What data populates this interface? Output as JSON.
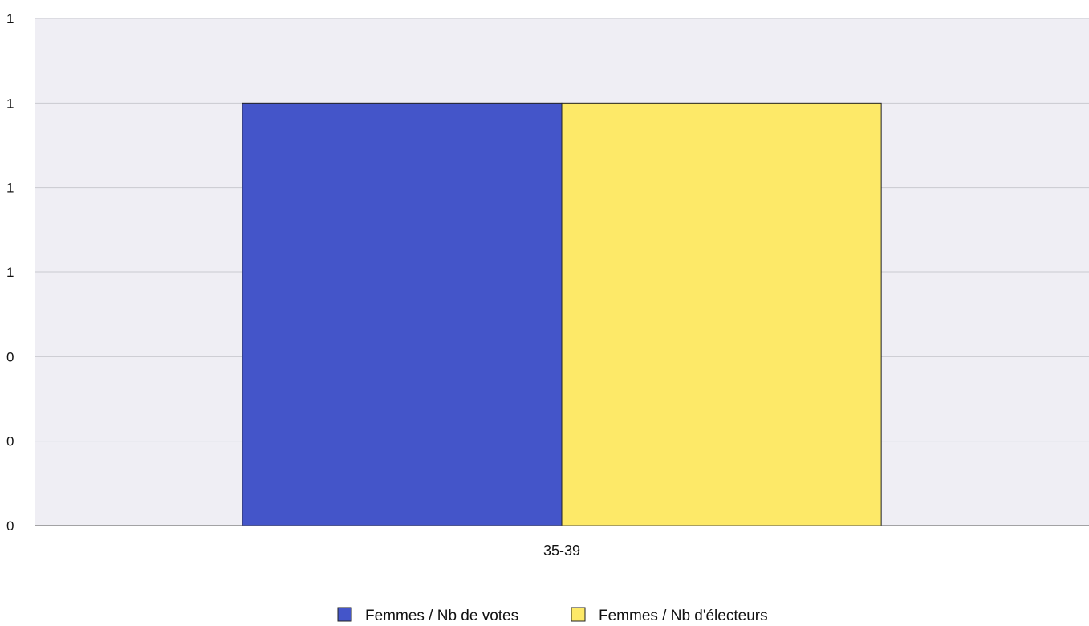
{
  "colors": {
    "plot_background": "#efeef4",
    "grid": "#c9c9cf",
    "axis": "#555555",
    "bar_outline": "#222222"
  },
  "chart_data": {
    "type": "bar",
    "title": "",
    "xlabel": "",
    "ylabel": "",
    "categories": [
      "35-39"
    ],
    "series": [
      {
        "name": "Femmes / Nb de votes",
        "color": "#4455c9",
        "values": [
          1
        ]
      },
      {
        "name": "Femmes / Nb d'électeurs",
        "color": "#fde968",
        "values": [
          1
        ]
      }
    ],
    "ylim": [
      0,
      1.2
    ],
    "yticks": [
      0,
      0.2,
      0.4,
      0.6,
      0.8,
      1.0,
      1.2
    ],
    "ytick_labels": [
      "0",
      "0",
      "0",
      "1",
      "1",
      "1",
      "1"
    ],
    "grid": true,
    "legend_position": "bottom-center"
  }
}
